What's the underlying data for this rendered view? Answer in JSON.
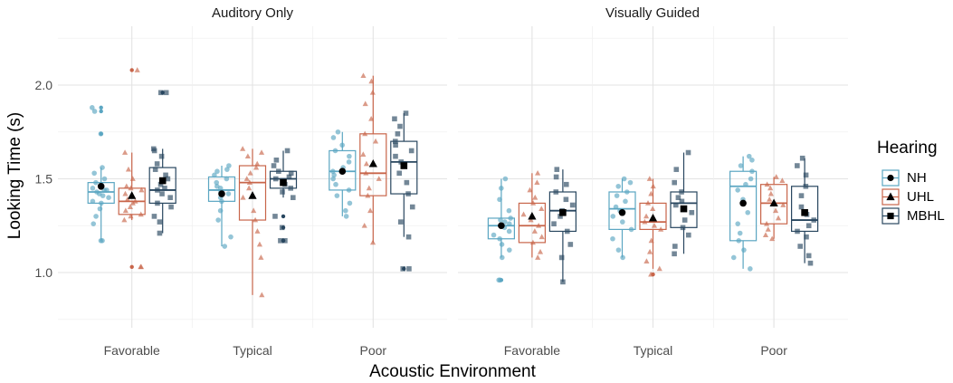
{
  "chart_data": {
    "type": "boxplot",
    "ylabel": "Looking Time (s)",
    "xlabel": "Acoustic Environment",
    "ylim": [
      0.75,
      2.25
    ],
    "yticks": [
      "1.0",
      "1.5",
      "2.0"
    ],
    "categories": [
      "Favorable",
      "Typical",
      "Poor"
    ],
    "legend": {
      "title": "Hearing",
      "placement": "right",
      "items": [
        {
          "name": "NH",
          "color": "#5ba6c2",
          "marker": "circle"
        },
        {
          "name": "UHL",
          "color": "#c8654a",
          "marker": "triangle"
        },
        {
          "name": "MBHL",
          "color": "#28465f",
          "marker": "square"
        }
      ]
    },
    "panels": [
      {
        "title": "Auditory Only",
        "groups": [
          {
            "category": "Favorable",
            "boxes": [
              {
                "series": "NH",
                "min": 1.17,
                "q1": 1.37,
                "median": 1.43,
                "q3": 1.48,
                "max": 1.56,
                "mean": 1.46,
                "outliers": [
                  1.88,
                  1.86,
                  1.74
                ],
                "points": [
                  1.17,
                  1.17,
                  1.26,
                  1.3,
                  1.34,
                  1.37,
                  1.38,
                  1.4,
                  1.41,
                  1.42,
                  1.43,
                  1.44,
                  1.44,
                  1.45,
                  1.47,
                  1.48,
                  1.5,
                  1.53,
                  1.56,
                  1.74,
                  1.86,
                  1.88
                ]
              },
              {
                "series": "UHL",
                "min": 1.28,
                "q1": 1.31,
                "median": 1.38,
                "q3": 1.45,
                "max": 1.64,
                "mean": 1.41,
                "outliers": [
                  2.08,
                  1.03
                ],
                "points": [
                  1.03,
                  1.03,
                  1.28,
                  1.3,
                  1.31,
                  1.33,
                  1.35,
                  1.37,
                  1.38,
                  1.39,
                  1.42,
                  1.44,
                  1.45,
                  1.46,
                  1.5,
                  1.55,
                  1.64,
                  2.08
                ]
              },
              {
                "series": "MBHL",
                "min": 1.21,
                "q1": 1.37,
                "median": 1.44,
                "q3": 1.56,
                "max": 1.66,
                "mean": 1.49,
                "outliers": [
                  1.96
                ],
                "points": [
                  1.21,
                  1.27,
                  1.3,
                  1.35,
                  1.37,
                  1.4,
                  1.42,
                  1.44,
                  1.45,
                  1.47,
                  1.5,
                  1.52,
                  1.55,
                  1.58,
                  1.62,
                  1.65,
                  1.66,
                  1.96,
                  1.96
                ]
              }
            ]
          },
          {
            "category": "Typical",
            "boxes": [
              {
                "series": "NH",
                "min": 1.14,
                "q1": 1.38,
                "median": 1.44,
                "q3": 1.51,
                "max": 1.57,
                "mean": 1.42,
                "outliers": [],
                "points": [
                  1.14,
                  1.19,
                  1.28,
                  1.33,
                  1.38,
                  1.4,
                  1.42,
                  1.43,
                  1.45,
                  1.46,
                  1.48,
                  1.5,
                  1.52,
                  1.54,
                  1.55,
                  1.57
                ]
              },
              {
                "series": "UHL",
                "min": 0.88,
                "q1": 1.28,
                "median": 1.48,
                "q3": 1.57,
                "max": 1.66,
                "mean": 1.41,
                "outliers": [],
                "points": [
                  0.88,
                  1.08,
                  1.15,
                  1.22,
                  1.28,
                  1.33,
                  1.4,
                  1.45,
                  1.48,
                  1.5,
                  1.53,
                  1.56,
                  1.58,
                  1.62,
                  1.64,
                  1.66
                ]
              },
              {
                "series": "MBHL",
                "min": 1.4,
                "q1": 1.45,
                "median": 1.5,
                "q3": 1.54,
                "max": 1.65,
                "mean": 1.48,
                "outliers": [
                  1.17,
                  1.17,
                  1.24,
                  1.3
                ],
                "points": [
                  1.17,
                  1.17,
                  1.24,
                  1.3,
                  1.4,
                  1.43,
                  1.45,
                  1.47,
                  1.49,
                  1.5,
                  1.51,
                  1.53,
                  1.54,
                  1.57,
                  1.6,
                  1.65
                ]
              }
            ]
          },
          {
            "category": "Poor",
            "boxes": [
              {
                "series": "NH",
                "min": 1.3,
                "q1": 1.44,
                "median": 1.54,
                "q3": 1.65,
                "max": 1.75,
                "mean": 1.54,
                "outliers": [],
                "points": [
                  1.3,
                  1.33,
                  1.37,
                  1.41,
                  1.44,
                  1.47,
                  1.5,
                  1.52,
                  1.54,
                  1.56,
                  1.59,
                  1.62,
                  1.65,
                  1.68,
                  1.72,
                  1.75
                ]
              },
              {
                "series": "UHL",
                "min": 1.16,
                "q1": 1.41,
                "median": 1.53,
                "q3": 1.74,
                "max": 2.05,
                "mean": 1.58,
                "outliers": [],
                "points": [
                  1.16,
                  1.25,
                  1.33,
                  1.41,
                  1.45,
                  1.5,
                  1.53,
                  1.58,
                  1.63,
                  1.7,
                  1.74,
                  1.82,
                  1.9,
                  1.96,
                  2.02,
                  2.05
                ]
              },
              {
                "series": "MBHL",
                "min": 1.19,
                "q1": 1.42,
                "median": 1.59,
                "q3": 1.7,
                "max": 1.85,
                "mean": 1.57,
                "outliers": [
                  1.02
                ],
                "points": [
                  1.02,
                  1.02,
                  1.19,
                  1.27,
                  1.35,
                  1.42,
                  1.48,
                  1.53,
                  1.59,
                  1.62,
                  1.65,
                  1.68,
                  1.7,
                  1.74,
                  1.78,
                  1.82,
                  1.85
                ]
              }
            ]
          }
        ]
      },
      {
        "title": "Visually Guided",
        "groups": [
          {
            "category": "Favorable",
            "boxes": [
              {
                "series": "NH",
                "min": 1.08,
                "q1": 1.18,
                "median": 1.25,
                "q3": 1.29,
                "max": 1.5,
                "mean": 1.25,
                "outliers": [
                  0.96
                ],
                "points": [
                  0.96,
                  0.96,
                  1.08,
                  1.12,
                  1.15,
                  1.18,
                  1.2,
                  1.22,
                  1.24,
                  1.25,
                  1.26,
                  1.27,
                  1.28,
                  1.29,
                  1.33,
                  1.39,
                  1.45,
                  1.5
                ]
              },
              {
                "series": "UHL",
                "min": 1.08,
                "q1": 1.16,
                "median": 1.25,
                "q3": 1.37,
                "max": 1.53,
                "mean": 1.3,
                "outliers": [],
                "points": [
                  1.08,
                  1.11,
                  1.16,
                  1.19,
                  1.22,
                  1.25,
                  1.28,
                  1.31,
                  1.34,
                  1.37,
                  1.4,
                  1.44,
                  1.48,
                  1.53
                ]
              },
              {
                "series": "MBHL",
                "min": 0.95,
                "q1": 1.22,
                "median": 1.33,
                "q3": 1.43,
                "max": 1.55,
                "mean": 1.32,
                "outliers": [],
                "points": [
                  0.95,
                  1.08,
                  1.15,
                  1.22,
                  1.26,
                  1.3,
                  1.33,
                  1.36,
                  1.39,
                  1.43,
                  1.47,
                  1.51,
                  1.55
                ]
              }
            ]
          },
          {
            "category": "Typical",
            "boxes": [
              {
                "series": "NH",
                "min": 1.08,
                "q1": 1.23,
                "median": 1.34,
                "q3": 1.43,
                "max": 1.5,
                "mean": 1.32,
                "outliers": [],
                "points": [
                  1.08,
                  1.12,
                  1.18,
                  1.23,
                  1.27,
                  1.3,
                  1.33,
                  1.35,
                  1.38,
                  1.41,
                  1.43,
                  1.46,
                  1.48,
                  1.5
                ]
              },
              {
                "series": "UHL",
                "min": 1.02,
                "q1": 1.23,
                "median": 1.27,
                "q3": 1.37,
                "max": 1.5,
                "mean": 1.29,
                "outliers": [
                  0.99
                ],
                "points": [
                  0.99,
                  1.02,
                  1.06,
                  1.11,
                  1.17,
                  1.23,
                  1.25,
                  1.27,
                  1.3,
                  1.34,
                  1.37,
                  1.42,
                  1.46,
                  1.5
                ]
              },
              {
                "series": "MBHL",
                "min": 1.1,
                "q1": 1.24,
                "median": 1.37,
                "q3": 1.43,
                "max": 1.64,
                "mean": 1.34,
                "outliers": [],
                "points": [
                  1.1,
                  1.14,
                  1.2,
                  1.24,
                  1.28,
                  1.32,
                  1.36,
                  1.38,
                  1.4,
                  1.43,
                  1.48,
                  1.55,
                  1.64
                ]
              }
            ]
          },
          {
            "category": "Poor",
            "boxes": [
              {
                "series": "NH",
                "min": 1.02,
                "q1": 1.17,
                "median": 1.46,
                "q3": 1.54,
                "max": 1.62,
                "mean": 1.37,
                "outliers": [],
                "points": [
                  1.02,
                  1.08,
                  1.12,
                  1.17,
                  1.21,
                  1.26,
                  1.32,
                  1.39,
                  1.44,
                  1.47,
                  1.5,
                  1.54,
                  1.57,
                  1.6,
                  1.62
                ]
              },
              {
                "series": "UHL",
                "min": 1.18,
                "q1": 1.26,
                "median": 1.37,
                "q3": 1.47,
                "max": 1.51,
                "mean": 1.37,
                "outliers": [],
                "points": [
                  1.18,
                  1.2,
                  1.23,
                  1.26,
                  1.29,
                  1.33,
                  1.36,
                  1.39,
                  1.42,
                  1.45,
                  1.47,
                  1.49,
                  1.51
                ]
              },
              {
                "series": "MBHL",
                "min": 1.05,
                "q1": 1.22,
                "median": 1.28,
                "q3": 1.46,
                "max": 1.61,
                "mean": 1.32,
                "outliers": [],
                "points": [
                  1.05,
                  1.09,
                  1.14,
                  1.19,
                  1.22,
                  1.25,
                  1.28,
                  1.31,
                  1.35,
                  1.41,
                  1.46,
                  1.52,
                  1.57,
                  1.61
                ]
              }
            ]
          }
        ]
      }
    ]
  }
}
